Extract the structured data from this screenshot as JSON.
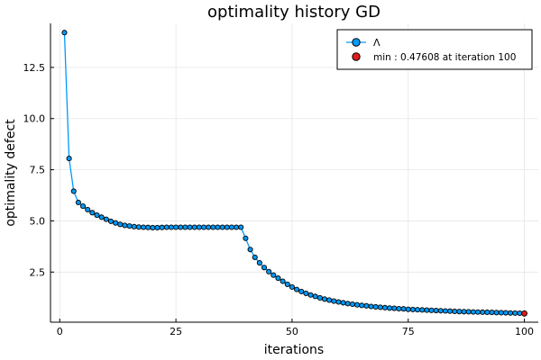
{
  "chart_data": {
    "type": "line",
    "title": "optimality history GD",
    "xlabel": "iterations",
    "ylabel": "optimality defect",
    "xlim": [
      -2,
      103
    ],
    "ylim": [
      0.05,
      14.65
    ],
    "xticks": [
      0,
      25,
      50,
      75,
      100
    ],
    "xtick_labels": [
      "0",
      "25",
      "50",
      "75",
      "100"
    ],
    "yticks": [
      2.5,
      5.0,
      7.5,
      10.0,
      12.5
    ],
    "ytick_labels": [
      "2.5",
      "5.0",
      "7.5",
      "10.0",
      "12.5"
    ],
    "grid": true,
    "legend_position": "top-right",
    "series": [
      {
        "name": "Λ",
        "color": "#009af9",
        "marker": "circle",
        "x": [
          1,
          2,
          3,
          4,
          5,
          6,
          7,
          8,
          9,
          10,
          11,
          12,
          13,
          14,
          15,
          16,
          17,
          18,
          19,
          20,
          21,
          22,
          23,
          24,
          25,
          26,
          27,
          28,
          29,
          30,
          31,
          32,
          33,
          34,
          35,
          36,
          37,
          38,
          39,
          40,
          41,
          42,
          43,
          44,
          45,
          46,
          47,
          48,
          49,
          50,
          51,
          52,
          53,
          54,
          55,
          56,
          57,
          58,
          59,
          60,
          61,
          62,
          63,
          64,
          65,
          66,
          67,
          68,
          69,
          70,
          71,
          72,
          73,
          74,
          75,
          76,
          77,
          78,
          79,
          80,
          81,
          82,
          83,
          84,
          85,
          86,
          87,
          88,
          89,
          90,
          91,
          92,
          93,
          94,
          95,
          96,
          97,
          98,
          99,
          100
        ],
        "values": [
          14.2,
          8.05,
          6.45,
          5.9,
          5.72,
          5.55,
          5.4,
          5.28,
          5.18,
          5.08,
          4.98,
          4.9,
          4.83,
          4.78,
          4.75,
          4.72,
          4.7,
          4.69,
          4.68,
          4.67,
          4.67,
          4.68,
          4.69,
          4.69,
          4.69,
          4.69,
          4.69,
          4.69,
          4.69,
          4.69,
          4.69,
          4.69,
          4.69,
          4.69,
          4.69,
          4.69,
          4.69,
          4.69,
          4.69,
          4.15,
          3.6,
          3.22,
          2.95,
          2.72,
          2.52,
          2.35,
          2.2,
          2.05,
          1.9,
          1.77,
          1.65,
          1.55,
          1.46,
          1.38,
          1.31,
          1.24,
          1.18,
          1.13,
          1.08,
          1.04,
          1.0,
          0.96,
          0.93,
          0.9,
          0.87,
          0.85,
          0.82,
          0.8,
          0.78,
          0.76,
          0.74,
          0.73,
          0.71,
          0.7,
          0.68,
          0.67,
          0.66,
          0.65,
          0.64,
          0.63,
          0.62,
          0.61,
          0.6,
          0.59,
          0.58,
          0.57,
          0.565,
          0.56,
          0.55,
          0.545,
          0.54,
          0.535,
          0.53,
          0.52,
          0.515,
          0.51,
          0.5,
          0.495,
          0.49,
          0.47608
        ]
      },
      {
        "name": "min : 0.47608 at iteration 100",
        "color": "#e01c1c",
        "marker": "circle",
        "x": [
          100
        ],
        "values": [
          0.47608
        ]
      }
    ]
  }
}
